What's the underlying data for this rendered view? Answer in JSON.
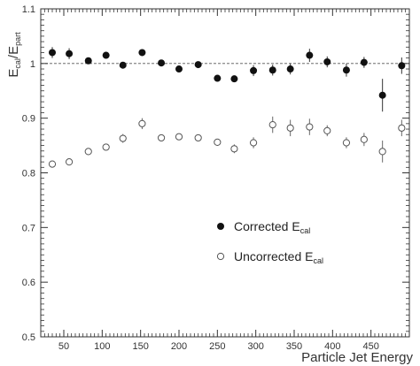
{
  "chart_data": {
    "type": "scatter",
    "xlabel": "Particle Jet Energy",
    "ylabel": {
      "main": "E",
      "num_sub": "cal",
      "den_main": "E",
      "den_sub": "part"
    },
    "xlim": [
      20,
      500
    ],
    "ylim": [
      0.5,
      1.1
    ],
    "x_ticks": [
      50,
      100,
      150,
      200,
      250,
      300,
      350,
      400,
      450,
      500
    ],
    "y_ticks": [
      0.5,
      0.6,
      0.7,
      0.8,
      0.9,
      1,
      1.1
    ],
    "y_tick_labels": [
      "0.5",
      "0.6",
      "0.7",
      "0.8",
      "0.9",
      "1",
      "1.1"
    ],
    "reference_line": {
      "y": 1,
      "style": "dashed"
    },
    "legend": {
      "placement": "center-right",
      "entries": [
        {
          "marker": "filled-circle",
          "text": "Corrected E",
          "sub": "cal"
        },
        {
          "marker": "open-circle",
          "text": "Uncorrected E",
          "sub": "cal"
        }
      ]
    },
    "series": [
      {
        "marker": "filled-circle",
        "x": [
          35,
          57,
          82,
          105,
          127,
          152,
          177,
          200,
          225,
          250,
          272,
          297,
          322,
          345,
          370,
          393,
          418,
          441,
          465,
          490
        ],
        "y": [
          1.02,
          1.018,
          1.005,
          1.015,
          0.997,
          1.02,
          1.001,
          0.99,
          0.998,
          0.973,
          0.972,
          0.987,
          0.988,
          0.99,
          1.015,
          1.003,
          0.988,
          1.002,
          0.942,
          0.996
        ],
        "err": [
          0.01,
          0.01,
          0.005,
          0.005,
          0.005,
          0.005,
          0.005,
          0.005,
          0.005,
          0.005,
          0.005,
          0.01,
          0.01,
          0.01,
          0.012,
          0.01,
          0.012,
          0.01,
          0.03,
          0.015
        ]
      },
      {
        "marker": "open-circle",
        "x": [
          35,
          57,
          82,
          105,
          127,
          152,
          177,
          200,
          225,
          250,
          272,
          297,
          322,
          345,
          370,
          393,
          418,
          441,
          465,
          490
        ],
        "y": [
          0.816,
          0.82,
          0.839,
          0.847,
          0.863,
          0.89,
          0.864,
          0.866,
          0.864,
          0.856,
          0.844,
          0.855,
          0.888,
          0.882,
          0.884,
          0.877,
          0.855,
          0.861,
          0.839,
          0.882
        ],
        "err": [
          0.006,
          0.006,
          0.006,
          0.006,
          0.008,
          0.01,
          0.006,
          0.006,
          0.006,
          0.006,
          0.008,
          0.01,
          0.015,
          0.015,
          0.015,
          0.01,
          0.01,
          0.012,
          0.02,
          0.015
        ]
      }
    ]
  }
}
